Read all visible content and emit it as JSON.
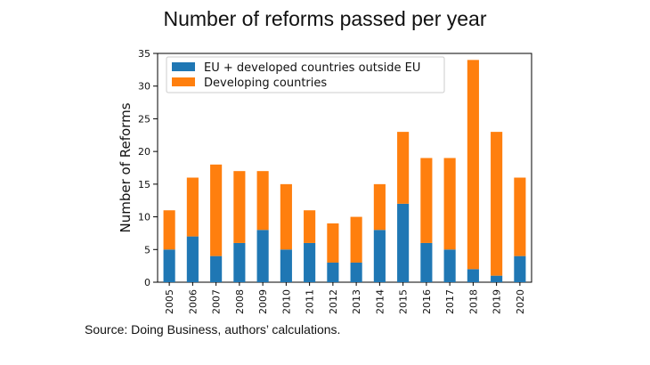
{
  "title": "Number of reforms passed per year",
  "source": "Source: Doing Business, authors’ calculations.",
  "colors": {
    "developed": "#1f77b4",
    "developing": "#ff7f0e"
  },
  "chart_data": {
    "type": "bar",
    "stacked": true,
    "title": "Number of reforms passed per year",
    "xlabel": "",
    "ylabel": "Number of Reforms",
    "ylim": [
      0,
      35
    ],
    "yticks": [
      0,
      5,
      10,
      15,
      20,
      25,
      30,
      35
    ],
    "legend_position": "top-left",
    "categories": [
      "2005",
      "2006",
      "2007",
      "2008",
      "2009",
      "2010",
      "2011",
      "2012",
      "2013",
      "2014",
      "2015",
      "2016",
      "2017",
      "2018",
      "2019",
      "2020"
    ],
    "series": [
      {
        "name": "EU + developed countries outside EU",
        "values": [
          5,
          7,
          4,
          6,
          8,
          5,
          6,
          3,
          3,
          8,
          12,
          6,
          5,
          2,
          1,
          4
        ]
      },
      {
        "name": "Developing countries",
        "values": [
          6,
          9,
          14,
          11,
          9,
          10,
          5,
          6,
          7,
          7,
          11,
          13,
          14,
          32,
          22,
          12
        ]
      }
    ]
  }
}
